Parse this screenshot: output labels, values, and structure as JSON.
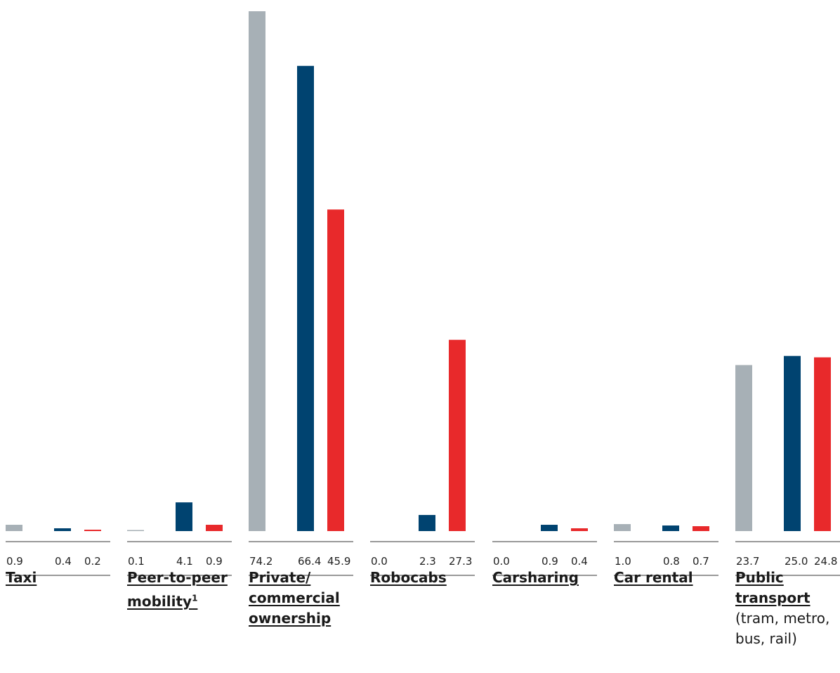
{
  "chart_data": {
    "type": "bar",
    "categories": [
      {
        "name": "Taxi",
        "sup": "",
        "note": ""
      },
      {
        "name": "Peer-to-peer\nmobility",
        "sup": "1",
        "note": ""
      },
      {
        "name": "Private/\ncommercial\nownership",
        "sup": "",
        "note": ""
      },
      {
        "name": "Robocabs",
        "sup": "",
        "note": ""
      },
      {
        "name": "Carsharing",
        "sup": "",
        "note": ""
      },
      {
        "name": "Car rental",
        "sup": "",
        "note": ""
      },
      {
        "name": "Public\ntransport",
        "sup": "",
        "note": "(tram, metro,\nbus, rail)"
      }
    ],
    "series": [
      {
        "color": "#a7b0b6",
        "values": [
          0.9,
          0.1,
          74.2,
          0.0,
          0.0,
          1.0,
          23.7
        ],
        "labels": [
          "0.9",
          "0.1",
          "74.2",
          "0.0",
          "0.0",
          "1.0",
          "23.7"
        ]
      },
      {
        "color": "#004370",
        "values": [
          0.4,
          4.1,
          66.4,
          2.3,
          0.9,
          0.8,
          25.0
        ],
        "labels": [
          "0.4",
          "4.1",
          "66.4",
          "2.3",
          "0.9",
          "0.8",
          "25.0"
        ]
      },
      {
        "color": "#e8292b",
        "values": [
          0.2,
          0.9,
          45.9,
          27.3,
          0.4,
          0.7,
          24.8
        ],
        "labels": [
          "0.2",
          "0.9",
          "45.9",
          "27.3",
          "0.4",
          "0.7",
          "24.8"
        ]
      }
    ],
    "ylim": [
      0,
      74.2
    ],
    "grid": false,
    "legend": "none"
  }
}
